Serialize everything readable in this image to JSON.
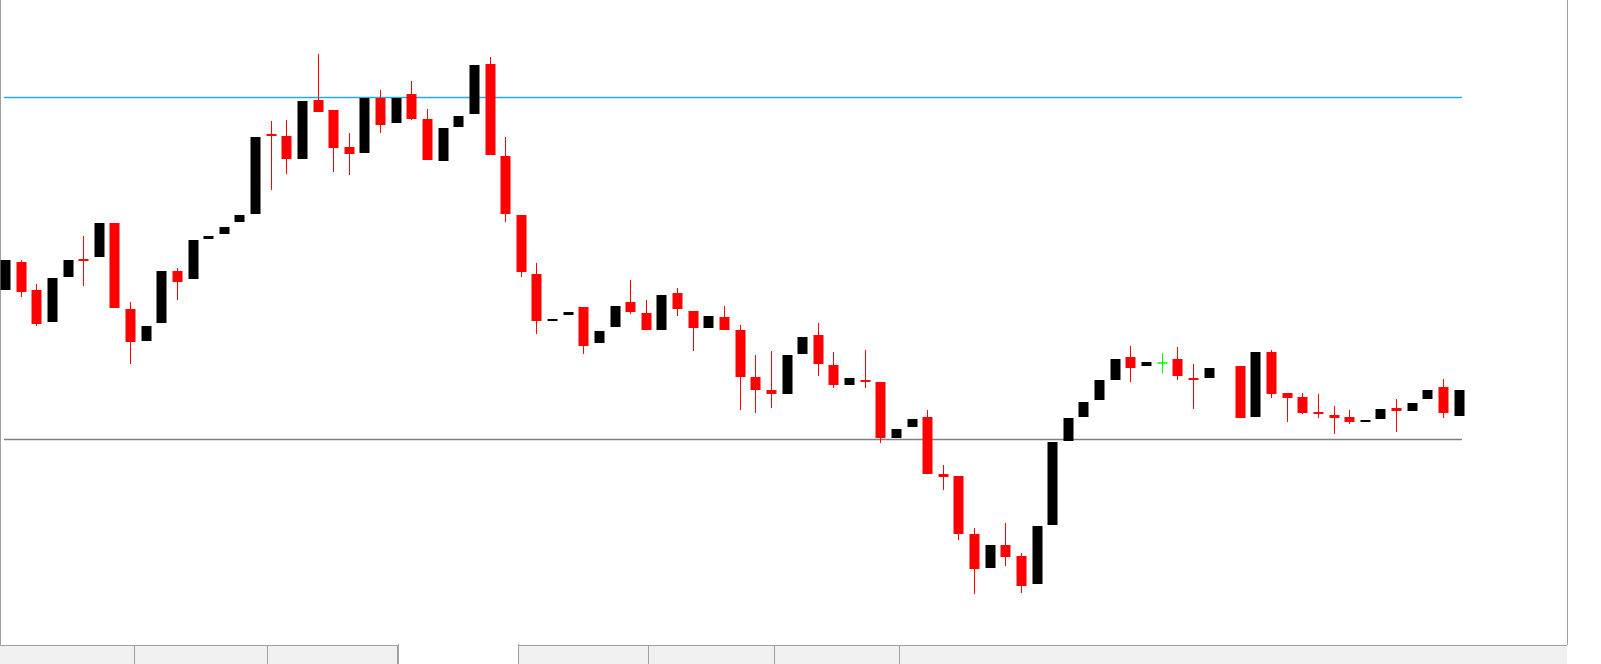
{
  "chart_data": {
    "type": "candlestick",
    "categories": [
      null,
      null,
      null,
      null,
      null,
      null,
      null,
      null,
      null,
      null,
      null,
      null,
      null,
      null,
      null,
      null,
      null,
      null,
      null,
      null,
      null,
      null,
      null,
      null,
      null,
      null,
      null,
      null,
      null,
      null,
      null,
      null,
      null,
      null,
      null,
      null,
      null,
      null,
      null,
      null,
      null,
      null,
      null,
      null,
      null,
      null,
      null,
      null,
      null,
      null,
      null,
      null,
      null,
      null,
      null,
      null,
      null,
      null,
      null,
      null,
      null,
      null,
      null,
      null,
      null,
      null,
      null,
      null,
      null,
      null,
      null,
      null,
      null,
      null,
      null,
      null,
      null,
      null,
      null,
      null,
      null,
      null,
      null,
      null,
      null,
      null,
      null,
      null,
      null,
      null,
      null,
      null,
      null,
      null
    ],
    "open": [
      355,
      383,
      355,
      323,
      368,
      386,
      388,
      422,
      336,
      304,
      322,
      374,
      366,
      406,
      411,
      423,
      431,
      511,
      509,
      486,
      545,
      535,
      498,
      492,
      547,
      522,
      551,
      526,
      484,
      518,
      531,
      581,
      489,
      430,
      371,
      324,
      330,
      338,
      302,
      318,
      343,
      332,
      315,
      352,
      334,
      317,
      328,
      315,
      268,
      255,
      251,
      291,
      310,
      280,
      260,
      265,
      263,
      207,
      218,
      228,
      171,
      169,
      111,
      77,
      100,
      89,
      61,
      120,
      204,
      228,
      245,
      265,
      288,
      279,
      282,
      286,
      267,
      267,
      null,
      279,
      228,
      293,
      252,
      248,
      233,
      230,
      228,
      223,
      226,
      237,
      234,
      246,
      258,
      229
    ],
    "high": [
      385,
      385,
      361,
      367,
      385,
      409,
      422,
      422,
      343,
      319,
      374,
      377,
      405,
      409,
      418,
      430,
      508,
      524,
      525,
      544,
      591,
      535,
      512,
      547,
      555,
      547,
      564,
      536,
      517,
      529,
      580,
      588,
      508,
      430,
      382,
      326,
      333,
      338,
      314,
      339,
      365,
      345,
      350,
      357,
      334,
      329,
      339,
      320,
      290,
      294,
      290,
      308,
      322,
      293,
      267,
      295,
      263,
      216,
      226,
      235,
      180,
      169,
      117,
      100,
      122,
      92,
      119,
      203,
      227,
      243,
      265,
      286,
      299,
      283,
      292,
      298,
      281,
      277,
      null,
      279,
      293,
      295,
      252,
      252,
      251,
      239,
      235,
      225,
      236,
      246,
      242,
      255,
      266,
      255
    ],
    "low": [
      355,
      348,
      319,
      323,
      368,
      359,
      388,
      337,
      281,
      304,
      322,
      345,
      366,
      406,
      411,
      423,
      431,
      455,
      471,
      486,
      533,
      473,
      470,
      492,
      512,
      522,
      525,
      485,
      484,
      518,
      531,
      490,
      423,
      368,
      311,
      324,
      330,
      291,
      302,
      318,
      331,
      315,
      315,
      329,
      294,
      317,
      315,
      235,
      232,
      237,
      251,
      291,
      269,
      257,
      260,
      257,
      202,
      207,
      218,
      171,
      155,
      105,
      51,
      77,
      79,
      52,
      61,
      120,
      204,
      228,
      245,
      265,
      263,
      279,
      272,
      265,
      236,
      267,
      null,
      227,
      228,
      247,
      223,
      231,
      227,
      211,
      221,
      223,
      226,
      213,
      234,
      246,
      227,
      229
    ],
    "close": [
      385,
      353,
      321,
      367,
      385,
      384,
      422,
      337,
      303,
      319,
      374,
      363,
      405,
      409,
      418,
      430,
      508,
      509,
      486,
      544,
      533,
      497,
      491,
      547,
      520,
      547,
      526,
      485,
      517,
      529,
      580,
      490,
      431,
      373,
      324,
      326,
      333,
      299,
      314,
      339,
      333,
      315,
      350,
      336,
      317,
      329,
      315,
      268,
      255,
      251,
      290,
      308,
      281,
      260,
      267,
      263,
      207,
      216,
      226,
      171,
      168,
      111,
      76,
      100,
      88,
      59,
      119,
      203,
      227,
      243,
      265,
      286,
      277,
      283,
      282,
      269,
      266,
      277,
      null,
      227,
      293,
      251,
      247,
      232,
      231,
      227,
      223,
      225,
      236,
      234,
      242,
      255,
      232,
      255
    ],
    "up_color": "#000000",
    "down_color": "#ff0000",
    "doji_color": "#00ff00",
    "hlines": [
      {
        "value": 548,
        "color": "#29aae2"
      },
      {
        "value": 206,
        "color": "#808080"
      }
    ],
    "ylim": [
      0,
      645
    ]
  }
}
